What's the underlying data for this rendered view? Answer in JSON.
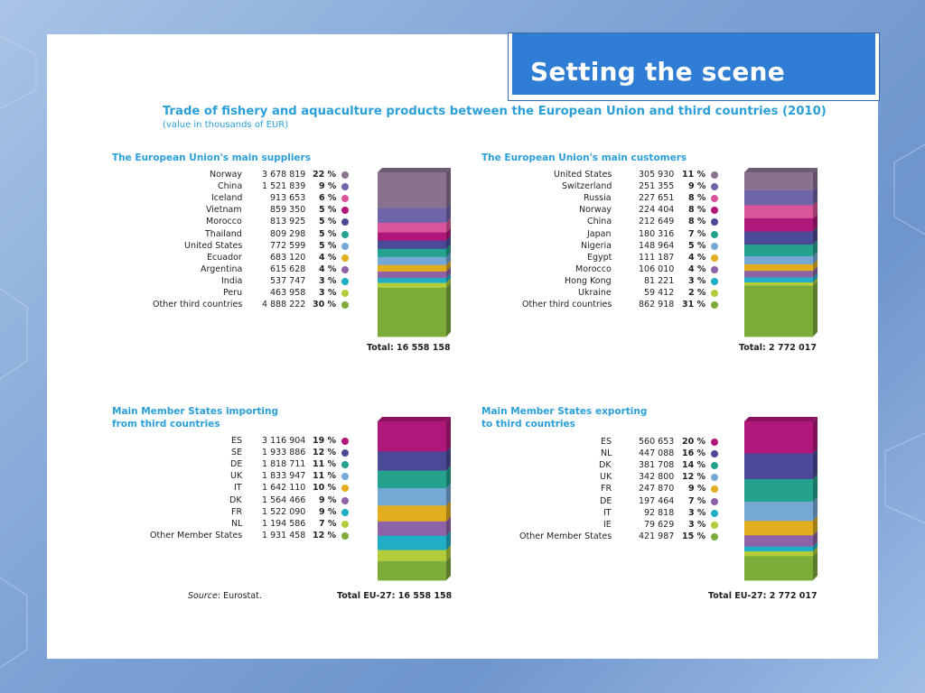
{
  "slide_title": "Setting the scene",
  "figure": {
    "title": "Trade of fishery and aquaculture products between the European Union and third countries (2010)",
    "subtitle": "(value in thousands of EUR)",
    "source_label": "Source",
    "source_text": ": Eurostat."
  },
  "colors": [
    "#8a7190",
    "#6e66a8",
    "#d9549a",
    "#b0177a",
    "#4b4a98",
    "#24a28e",
    "#76a8d6",
    "#e2ae20",
    "#8e62a6",
    "#20aec6",
    "#b2cc3c",
    "#7cab3a"
  ],
  "chart_data": [
    {
      "type": "bar",
      "title": "The European Union's main suppliers",
      "categories": [
        "Norway",
        "China",
        "Iceland",
        "Vietnam",
        "Morocco",
        "Thailand",
        "United States",
        "Ecuador",
        "Argentina",
        "India",
        "Peru",
        "Other third countries"
      ],
      "values_display": [
        "3 678 819",
        "1 521 839",
        "913 653",
        "859 350",
        "813 925",
        "809 298",
        "772 599",
        "683 120",
        "615 628",
        "537 747",
        "463 958",
        "4 888 222"
      ],
      "values": [
        3678819,
        1521839,
        913653,
        859350,
        813925,
        809298,
        772599,
        683120,
        615628,
        537747,
        463958,
        4888222
      ],
      "percent_labels": [
        "22 %",
        "9 %",
        "6 %",
        "5 %",
        "5 %",
        "5 %",
        "5 %",
        "4 %",
        "4 %",
        "3 %",
        "3 %",
        "30 %"
      ],
      "percent": [
        22,
        9,
        6,
        5,
        5,
        5,
        5,
        4,
        4,
        3,
        3,
        30
      ],
      "color_index": [
        0,
        1,
        2,
        3,
        4,
        5,
        6,
        7,
        8,
        9,
        10,
        11
      ],
      "total": "Total: 16 558 158"
    },
    {
      "type": "bar",
      "title": "The European Union's main customers",
      "categories": [
        "United States",
        "Switzerland",
        "Russia",
        "Norway",
        "China",
        "Japan",
        "Nigeria",
        "Egypt",
        "Morocco",
        "Hong Kong",
        "Ukraine",
        "Other third countries"
      ],
      "values_display": [
        "305 930",
        "251 355",
        "227 651",
        "224 404",
        "212 649",
        "180 316",
        "148 964",
        "111 187",
        "106 010",
        "81 221",
        "59 412",
        "862 918"
      ],
      "values": [
        305930,
        251355,
        227651,
        224404,
        212649,
        180316,
        148964,
        111187,
        106010,
        81221,
        59412,
        862918
      ],
      "percent_labels": [
        "11 %",
        "9 %",
        "8 %",
        "8 %",
        "8 %",
        "7 %",
        "5 %",
        "4 %",
        "4 %",
        "3 %",
        "2 %",
        "31 %"
      ],
      "percent": [
        11,
        9,
        8,
        8,
        8,
        7,
        5,
        4,
        4,
        3,
        2,
        31
      ],
      "color_index": [
        0,
        1,
        2,
        3,
        4,
        5,
        6,
        7,
        8,
        9,
        10,
        11
      ],
      "total": "Total: 2 772 017"
    },
    {
      "type": "bar",
      "title": "Main Member States importing from third countries",
      "title_lines": [
        "Main Member States importing",
        "from third countries"
      ],
      "categories": [
        "ES",
        "SE",
        "DE",
        "UK",
        "IT",
        "DK",
        "FR",
        "NL",
        "Other Member States"
      ],
      "values_display": [
        "3 116 904",
        "1 933 886",
        "1 818 711",
        "1 833 947",
        "1 642 110",
        "1 564 466",
        "1 522 090",
        "1 194 586",
        "1 931 458"
      ],
      "values": [
        3116904,
        1933886,
        1818711,
        1833947,
        1642110,
        1564466,
        1522090,
        1194586,
        1931458
      ],
      "percent_labels": [
        "19 %",
        "12 %",
        "11 %",
        "11 %",
        "10 %",
        "9 %",
        "9 %",
        "7 %",
        "12 %"
      ],
      "percent": [
        19,
        12,
        11,
        11,
        10,
        9,
        9,
        7,
        12
      ],
      "color_index": [
        3,
        4,
        5,
        6,
        7,
        8,
        9,
        10,
        11
      ],
      "total": "Total EU-27: 16 558 158"
    },
    {
      "type": "bar",
      "title": "Main Member States exporting to third countries",
      "title_lines": [
        "Main Member States exporting",
        "to third countries"
      ],
      "categories": [
        "ES",
        "NL",
        "DK",
        "UK",
        "FR",
        "DE",
        "IT",
        "IE",
        "Other Member States"
      ],
      "values_display": [
        "560 653",
        "447 088",
        "381 708",
        "342 800",
        "247 870",
        "197 464",
        "92 818",
        "79 629",
        "421 987"
      ],
      "values": [
        560653,
        447088,
        381708,
        342800,
        247870,
        197464,
        92818,
        79629,
        421987
      ],
      "percent_labels": [
        "20 %",
        "16 %",
        "14 %",
        "12 %",
        "9 %",
        "7 %",
        "3 %",
        "3 %",
        "15 %"
      ],
      "percent": [
        20,
        16,
        14,
        12,
        9,
        7,
        3,
        3,
        15
      ],
      "color_index": [
        3,
        4,
        5,
        6,
        7,
        8,
        9,
        10,
        11
      ],
      "total": "Total EU-27: 2 772 017"
    }
  ]
}
